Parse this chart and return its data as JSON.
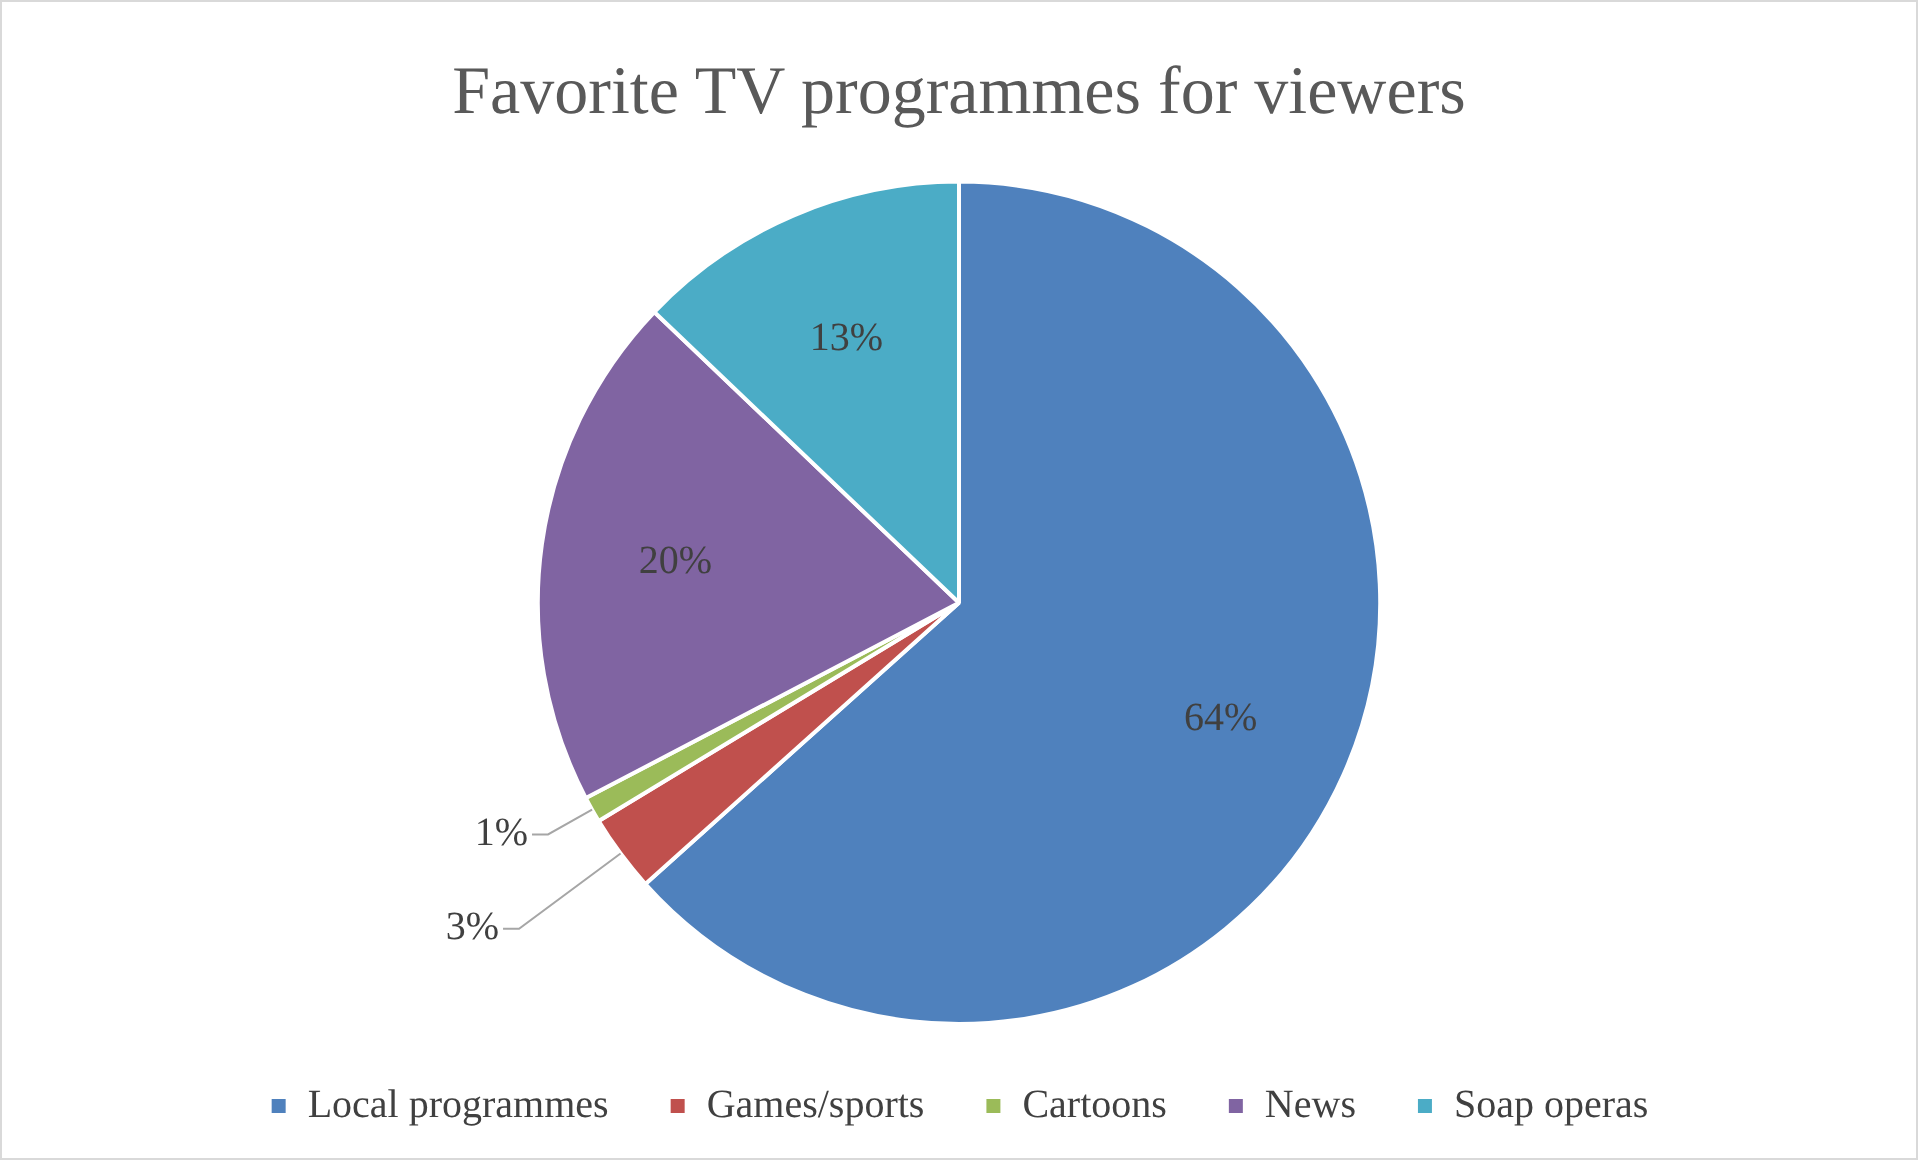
{
  "chart_data": {
    "type": "pie",
    "title": "Favorite TV programmes for viewers",
    "categories": [
      "Local programmes",
      "Games/sports",
      "Cartoons",
      "News",
      "Soap operas"
    ],
    "values": [
      64,
      3,
      1,
      20,
      13
    ],
    "colors": [
      "#4f81bd",
      "#c0504d",
      "#9bbb59",
      "#8064a2",
      "#4bacc6"
    ],
    "value_labels": [
      "64%",
      "3%",
      "1%",
      "20%",
      "13%"
    ],
    "legend": "bottom"
  }
}
